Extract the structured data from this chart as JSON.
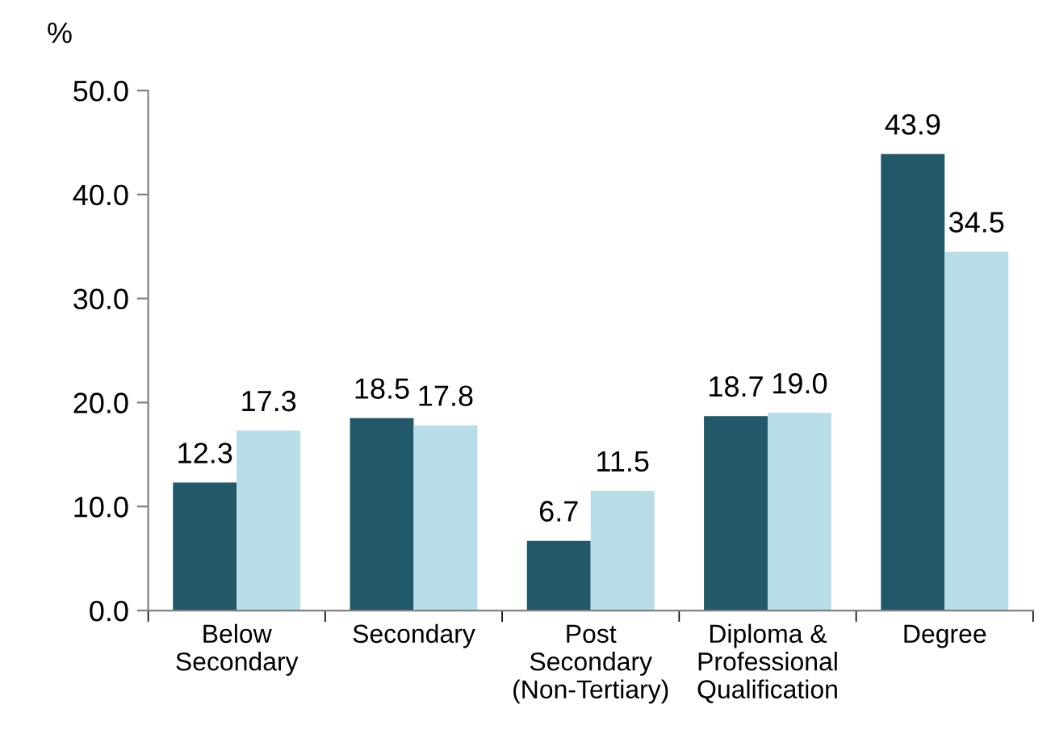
{
  "chart_data": {
    "type": "bar",
    "ylabel": "%",
    "categories": [
      "Below\nSecondary",
      "Secondary",
      "Post\nSecondary\n(Non-Tertiary)",
      "Diploma &\nProfessional\nQualification",
      "Degree"
    ],
    "series": [
      {
        "color": "#215968",
        "values": [
          12.3,
          18.5,
          6.7,
          18.7,
          43.9
        ],
        "value_labels": [
          "12.3",
          "18.5",
          "6.7",
          "18.7",
          "43.9"
        ]
      },
      {
        "color": "#b7dde8",
        "values": [
          17.3,
          17.8,
          11.5,
          19.0,
          34.5
        ],
        "value_labels": [
          "17.3",
          "17.8",
          "11.5",
          "19.0",
          "34.5"
        ]
      }
    ],
    "ylim": [
      0,
      50
    ],
    "yticks": [
      {
        "value": 0,
        "label": "0.0"
      },
      {
        "value": 10,
        "label": "10.0"
      },
      {
        "value": 20,
        "label": "20.0"
      },
      {
        "value": 30,
        "label": "30.0"
      },
      {
        "value": 40,
        "label": "40.0"
      },
      {
        "value": 50,
        "label": "50.0"
      }
    ],
    "grid": false,
    "legend": false
  }
}
